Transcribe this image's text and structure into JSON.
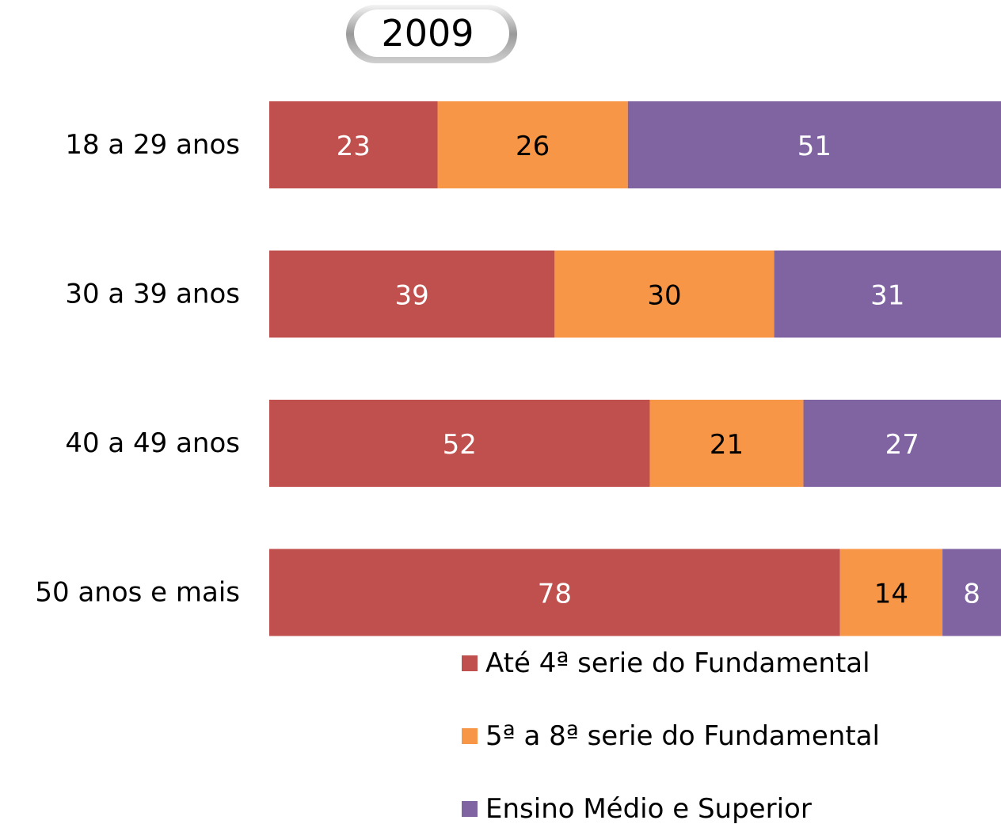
{
  "chart_data": {
    "type": "stacked-bar-horizontal",
    "title": "2009",
    "categories": [
      "18 a 29 anos",
      "30 a 39 anos",
      "40 a 49 anos",
      "50 anos e mais"
    ],
    "series": [
      {
        "name": "Até 4ª serie do Fundamental",
        "color": "#c0504d",
        "label_color": "#ffffff",
        "values": [
          23,
          39,
          52,
          78
        ]
      },
      {
        "name": "5ª a 8ª serie do Fundamental",
        "color": "#f79646",
        "label_color": "#000000",
        "values": [
          26,
          30,
          21,
          14
        ]
      },
      {
        "name": "Ensino Médio e Superior",
        "color": "#8064a2",
        "label_color": "#ffffff",
        "values": [
          51,
          31,
          27,
          8
        ]
      }
    ],
    "xlim": [
      0,
      100
    ],
    "legend": "bottom"
  }
}
